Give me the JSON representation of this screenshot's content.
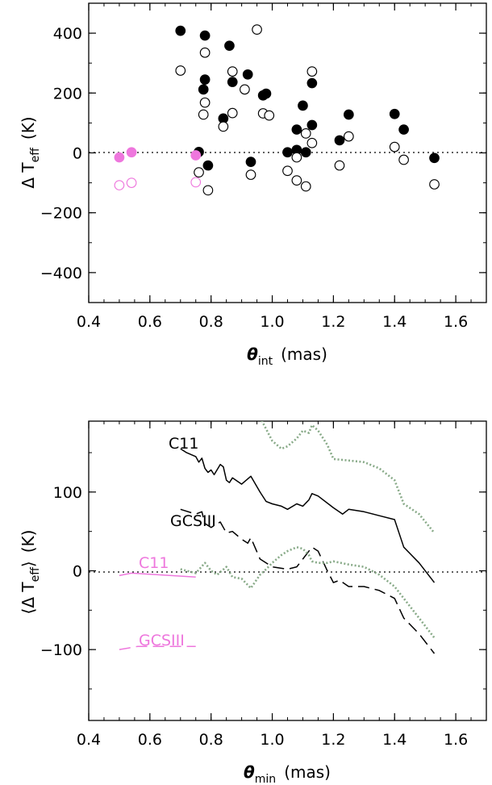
{
  "colors": {
    "black": "#000000",
    "pink": "#ee77dd",
    "green_dotted": "#88aa88"
  },
  "top_xaxis": {
    "symbol": "θ",
    "subscript": "int",
    "unit": "(mas)"
  },
  "top_yaxis": {
    "prefix": "Δ T",
    "subscript": "eff",
    "unit": "(K)"
  },
  "bottom_xaxis": {
    "symbol": "θ",
    "subscript": "min",
    "unit": "(mas)"
  },
  "bottom_yaxis": {
    "open": "⟨",
    "prefix": "Δ T",
    "subscript": "eff",
    "close": "⟩",
    "unit": "(K)"
  },
  "series_labels": {
    "c11_black": "C11",
    "gcs_black": "GCSIII",
    "c11_pink": "C11",
    "gcs_pink": "GCSIII"
  },
  "chart_data": [
    {
      "type": "scatter",
      "xlim": [
        0.4,
        1.7
      ],
      "ylim": [
        -500,
        500
      ],
      "xticks": [
        "0.4",
        "0.6",
        "0.8",
        "1.0",
        "1.2",
        "1.4",
        "1.6"
      ],
      "yticks": [
        "−400",
        "−200",
        "0",
        "200",
        "400"
      ],
      "reference_line": {
        "y": 0,
        "style": "dotted"
      },
      "series": [
        {
          "marker": "filled-circle",
          "color": "#000000",
          "points": [
            [
              0.7,
              408
            ],
            [
              0.78,
              392
            ],
            [
              0.86,
              358
            ],
            [
              0.92,
              262
            ],
            [
              0.87,
              237
            ],
            [
              0.78,
              245
            ],
            [
              0.775,
              212
            ],
            [
              0.98,
              198
            ],
            [
              0.97,
              192
            ],
            [
              1.13,
              233
            ],
            [
              1.1,
              158
            ],
            [
              1.25,
              128
            ],
            [
              1.4,
              130
            ],
            [
              1.43,
              78
            ],
            [
              0.84,
              115
            ],
            [
              1.13,
              93
            ],
            [
              1.08,
              78
            ],
            [
              1.22,
              42
            ],
            [
              0.76,
              3
            ],
            [
              1.05,
              2
            ],
            [
              1.08,
              10
            ],
            [
              1.11,
              2
            ],
            [
              0.93,
              -30
            ],
            [
              0.79,
              -42
            ],
            [
              1.53,
              -17
            ]
          ]
        },
        {
          "marker": "open-circle",
          "color": "#000000",
          "points": [
            [
              0.7,
              275
            ],
            [
              0.95,
              412
            ],
            [
              0.78,
              335
            ],
            [
              0.87,
              272
            ],
            [
              1.13,
              272
            ],
            [
              0.91,
              212
            ],
            [
              0.78,
              168
            ],
            [
              0.775,
              128
            ],
            [
              0.87,
              133
            ],
            [
              0.97,
              132
            ],
            [
              0.99,
              125
            ],
            [
              1.11,
              65
            ],
            [
              1.13,
              33
            ],
            [
              1.25,
              55
            ],
            [
              0.84,
              88
            ],
            [
              1.08,
              -15
            ],
            [
              1.4,
              20
            ],
            [
              1.43,
              -23
            ],
            [
              1.22,
              -42
            ],
            [
              1.05,
              -60
            ],
            [
              0.76,
              -65
            ],
            [
              0.93,
              -73
            ],
            [
              1.08,
              -92
            ],
            [
              1.11,
              -112
            ],
            [
              1.53,
              -105
            ],
            [
              0.79,
              -125
            ]
          ]
        },
        {
          "marker": "filled-circle",
          "color": "#ee77dd",
          "points": [
            [
              0.5,
              -15
            ],
            [
              0.54,
              2
            ],
            [
              0.75,
              -8
            ]
          ]
        },
        {
          "marker": "open-circle",
          "color": "#ee77dd",
          "points": [
            [
              0.5,
              -108
            ],
            [
              0.54,
              -100
            ],
            [
              0.75,
              -98
            ]
          ]
        }
      ]
    },
    {
      "type": "line",
      "xlim": [
        0.4,
        1.7
      ],
      "ylim": [
        -190,
        190
      ],
      "xticks": [
        "0.4",
        "0.6",
        "0.8",
        "1.0",
        "1.2",
        "1.4",
        "1.6"
      ],
      "yticks": [
        "−100",
        "0",
        "100"
      ],
      "reference_line": {
        "y": 0,
        "style": "dotted"
      },
      "series": [
        {
          "name": "C11",
          "color": "#000000",
          "style": "solid",
          "x": [
            0.7,
            0.72,
            0.75,
            0.76,
            0.77,
            0.78,
            0.79,
            0.8,
            0.81,
            0.83,
            0.84,
            0.85,
            0.86,
            0.87,
            0.9,
            0.93,
            0.96,
            0.98,
            1.0,
            1.03,
            1.05,
            1.08,
            1.1,
            1.12,
            1.13,
            1.15,
            1.2,
            1.23,
            1.25,
            1.3,
            1.35,
            1.4,
            1.43,
            1.48,
            1.53
          ],
          "y": [
            155,
            150,
            145,
            138,
            143,
            130,
            125,
            128,
            122,
            135,
            132,
            115,
            112,
            118,
            110,
            120,
            100,
            88,
            85,
            82,
            78,
            85,
            82,
            90,
            98,
            95,
            80,
            72,
            78,
            75,
            70,
            65,
            30,
            10,
            -15
          ]
        },
        {
          "name": "GCSIII",
          "color": "#000000",
          "style": "dashed",
          "x": [
            0.7,
            0.75,
            0.77,
            0.78,
            0.8,
            0.83,
            0.85,
            0.87,
            0.9,
            0.92,
            0.93,
            0.96,
            0.98,
            1.0,
            1.05,
            1.08,
            1.1,
            1.12,
            1.13,
            1.15,
            1.18,
            1.2,
            1.22,
            1.25,
            1.3,
            1.35,
            1.4,
            1.43,
            1.48,
            1.53
          ],
          "y": [
            78,
            72,
            75,
            60,
            55,
            62,
            48,
            50,
            40,
            35,
            42,
            15,
            10,
            5,
            2,
            5,
            15,
            25,
            30,
            25,
            0,
            -15,
            -12,
            -20,
            -20,
            -25,
            -35,
            -60,
            -80,
            -105
          ]
        },
        {
          "color": "#88aa88",
          "style": "dotted",
          "x": [
            0.7,
            0.75,
            0.78,
            0.8,
            0.82,
            0.85,
            0.87,
            0.9,
            0.93,
            0.96,
            0.98,
            1.0,
            1.03,
            1.05,
            1.08,
            1.1,
            1.12,
            1.13,
            1.15,
            1.18,
            1.2,
            1.25,
            1.3,
            1.35,
            1.4,
            1.43,
            1.48,
            1.53
          ],
          "y": [
            2,
            -3,
            10,
            0,
            -5,
            5,
            -8,
            -10,
            -22,
            -5,
            2,
            10,
            20,
            25,
            30,
            28,
            20,
            12,
            10,
            10,
            12,
            8,
            5,
            -5,
            -20,
            -35,
            -60,
            -85
          ]
        },
        {
          "color": "#88aa88",
          "style": "dotted",
          "x": [
            0.96,
            1.0,
            1.03,
            1.05,
            1.08,
            1.1,
            1.12,
            1.13,
            1.15,
            1.18,
            1.2,
            1.25,
            1.3,
            1.35,
            1.4,
            1.43,
            1.48,
            1.53
          ],
          "y": [
            195,
            165,
            155,
            158,
            168,
            178,
            175,
            185,
            178,
            160,
            142,
            140,
            138,
            130,
            115,
            85,
            72,
            48
          ]
        },
        {
          "name": "C11",
          "color": "#ee77dd",
          "style": "solid",
          "x": [
            0.5,
            0.54,
            0.75
          ],
          "y": [
            -6,
            -3,
            -8
          ]
        },
        {
          "name": "GCSIII",
          "color": "#ee77dd",
          "style": "dashed",
          "x": [
            0.5,
            0.53,
            0.56,
            0.75
          ],
          "y": [
            -100,
            -98,
            -96,
            -96
          ]
        }
      ]
    }
  ]
}
